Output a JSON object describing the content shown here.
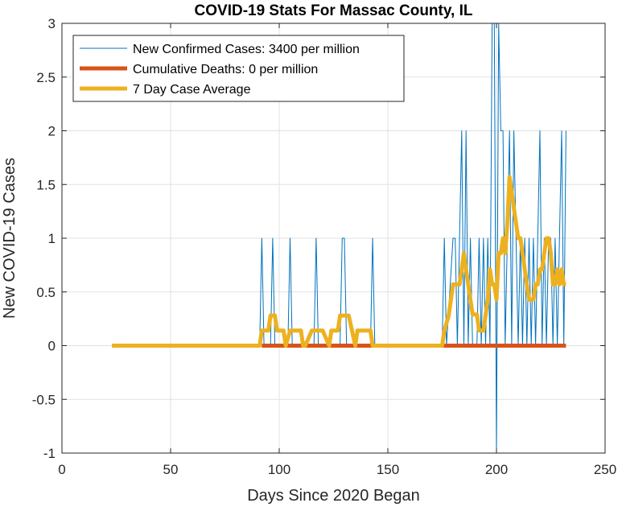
{
  "chart_data": {
    "type": "line",
    "title": "COVID-19 Stats For Massac County, IL",
    "xlabel": "Days Since 2020 Began",
    "ylabel": "New COVID-19 Cases",
    "xlim": [
      0,
      250
    ],
    "ylim": [
      -1,
      3
    ],
    "xticks": [
      0,
      50,
      100,
      150,
      200,
      250
    ],
    "yticks": [
      -1,
      -0.5,
      0,
      0.5,
      1,
      1.5,
      2,
      2.5,
      3
    ],
    "xtick_labels": [
      "0",
      "50",
      "100",
      "150",
      "200",
      "250"
    ],
    "ytick_labels": [
      "-1",
      "-0.5",
      "0",
      "0.5",
      "1",
      "1.5",
      "2",
      "2.5",
      "3"
    ],
    "grid": true,
    "legend_position": "top-left",
    "series": [
      {
        "name": "New Confirmed Cases: 3400 per million",
        "color": "#0072BD",
        "x": [
          23,
          91,
          92,
          93,
          96,
          97,
          98,
          104,
          105,
          106,
          116,
          117,
          118,
          128,
          129,
          130,
          131,
          142,
          143,
          144,
          175,
          176,
          177,
          180,
          181,
          182,
          183,
          184,
          185,
          186,
          187,
          188,
          189,
          190,
          191,
          192,
          193,
          194,
          195,
          196,
          197,
          198,
          199,
          200,
          201,
          202,
          203,
          204,
          205,
          206,
          207,
          208,
          209,
          210,
          211,
          212,
          213,
          214,
          215,
          216,
          217,
          218,
          219,
          220,
          221,
          222,
          223,
          224,
          225,
          226,
          227,
          228,
          229,
          230,
          231,
          232
        ],
        "y": [
          0,
          0,
          1,
          0,
          0,
          1,
          0,
          0,
          1,
          0,
          0,
          1,
          0,
          0,
          1,
          1,
          0,
          0,
          1,
          0,
          0,
          1,
          0,
          1,
          1,
          0,
          1,
          2,
          0,
          2,
          0,
          1,
          0,
          0,
          0,
          1,
          0,
          1,
          0,
          1,
          0,
          3,
          3,
          -1,
          3,
          2,
          2,
          0,
          1,
          2,
          0,
          2,
          1,
          0,
          1,
          0,
          1,
          0,
          1,
          0,
          1,
          0,
          1,
          2,
          0,
          1,
          0,
          1,
          1,
          0,
          1,
          0,
          1,
          2,
          0,
          2
        ]
      },
      {
        "name": "Cumulative Deaths: 0 per million",
        "color": "#D95319",
        "x": [
          92,
          232
        ],
        "y": [
          0,
          0
        ]
      },
      {
        "name": "7 Day Case Average",
        "color": "#EDB120",
        "x": [
          23,
          91,
          92,
          95,
          96,
          98,
          99,
          102,
          103,
          105,
          110,
          111,
          112,
          115,
          116,
          117,
          120,
          123,
          124,
          127,
          128,
          129,
          132,
          135,
          136,
          139,
          142,
          143,
          146,
          150,
          175,
          176,
          178,
          180,
          181,
          183,
          185,
          186,
          188,
          189,
          191,
          192,
          194,
          196,
          197,
          198,
          199,
          200,
          201,
          202,
          203,
          204,
          205,
          206,
          207,
          208,
          209,
          210,
          211,
          212,
          213,
          214,
          215,
          216,
          217,
          218,
          219,
          220,
          221,
          222,
          223,
          224,
          225,
          226,
          227,
          228,
          229,
          230,
          231,
          232
        ],
        "y": [
          0,
          0,
          0.14,
          0.14,
          0.28,
          0.28,
          0.14,
          0.14,
          0,
          0.14,
          0.14,
          0,
          0,
          0.14,
          0.14,
          0.14,
          0.14,
          0,
          0.14,
          0.14,
          0.28,
          0.28,
          0.28,
          0,
          0.14,
          0.14,
          0.14,
          0,
          0,
          0,
          0,
          0.14,
          0.28,
          0.57,
          0.57,
          0.57,
          0.86,
          0.71,
          0.43,
          0.29,
          0.29,
          0.14,
          0.14,
          0.43,
          0.71,
          0.57,
          0.57,
          0.43,
          0.86,
          0.86,
          1.0,
          0.86,
          1.14,
          1.57,
          1.43,
          1.28,
          1.14,
          1.0,
          1.0,
          0.86,
          0.71,
          0.57,
          0.43,
          0.43,
          0.43,
          0.57,
          0.57,
          0.71,
          0.71,
          0.86,
          1.0,
          1.0,
          0.86,
          0.57,
          0.57,
          0.71,
          0.57,
          0.71,
          0.57,
          0.57
        ]
      }
    ]
  }
}
